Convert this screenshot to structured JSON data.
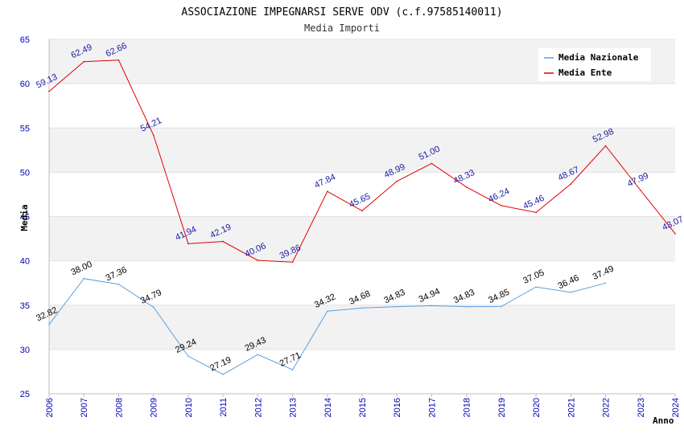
{
  "chart_data": {
    "type": "line",
    "title": "ASSOCIAZIONE IMPEGNARSI SERVE ODV (c.f.97585140011)",
    "subtitle": "Media Importi",
    "xlabel": "Anno",
    "ylabel": "Media",
    "ylim": [
      25,
      65
    ],
    "yticks": [
      "25",
      "30",
      "35",
      "40",
      "45",
      "50",
      "55",
      "60",
      "65"
    ],
    "x": [
      "2006",
      "2007",
      "2008",
      "2009",
      "2010",
      "2011",
      "2012",
      "2013",
      "2014",
      "2015",
      "2016",
      "2017",
      "2018",
      "2019",
      "2020",
      "2021",
      "2022",
      "2023",
      "2024"
    ],
    "legend_position": "top-right",
    "grid": true,
    "series": [
      {
        "name": "Media Nazionale",
        "color": "#5aa0e0",
        "label_color": "#000000",
        "values": [
          32.82,
          38.0,
          37.36,
          34.79,
          29.24,
          27.19,
          29.43,
          27.71,
          34.32,
          34.68,
          34.83,
          34.94,
          34.83,
          34.85,
          37.05,
          36.46,
          37.49,
          null,
          null
        ],
        "labels": [
          "32.82",
          "38.00",
          "37.36",
          "34.79",
          "29.24",
          "27.19",
          "29.43",
          "27.71",
          "34.32",
          "34.68",
          "34.83",
          "34.94",
          "34.83",
          "34.85",
          "37.05",
          "36.46",
          "37.49",
          null,
          null
        ]
      },
      {
        "name": "Media Ente",
        "color": "#e00000",
        "label_color": "#1a1aa6",
        "values": [
          59.13,
          62.49,
          62.66,
          54.21,
          41.94,
          42.19,
          40.06,
          39.86,
          47.84,
          45.65,
          48.99,
          51.0,
          48.33,
          46.24,
          45.46,
          48.67,
          52.98,
          47.99,
          43.07
        ],
        "labels": [
          "59.13",
          "62.49",
          "62.66",
          "54.21",
          "41.94",
          "42.19",
          "40.06",
          "39.86",
          "47.84",
          "45.65",
          "48.99",
          "51.00",
          "48.33",
          "46.24",
          "45.46",
          "48.67",
          "52.98",
          "47.99",
          "43.07"
        ]
      }
    ]
  }
}
